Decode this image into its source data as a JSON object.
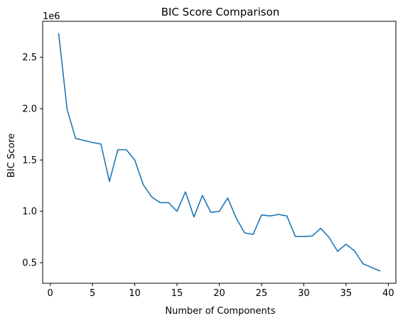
{
  "chart_data": {
    "type": "line",
    "title": "BIC Score Comparison",
    "xlabel": "Number of Components",
    "ylabel": "BIC Score",
    "offset_text": "1e6",
    "xlim": [
      -0.9,
      40.9
    ],
    "ylim": [
      0.3,
      2.85
    ],
    "xticks": [
      0,
      5,
      10,
      15,
      20,
      25,
      30,
      35,
      40
    ],
    "xtick_labels": [
      "0",
      "5",
      "10",
      "15",
      "20",
      "25",
      "30",
      "35",
      "40"
    ],
    "yticks": [
      0.5,
      1.0,
      1.5,
      2.0,
      2.5
    ],
    "ytick_labels": [
      "0.5",
      "1.0",
      "1.5",
      "2.0",
      "2.5"
    ],
    "grid": false,
    "series": [
      {
        "color": "#1f77b4",
        "x": [
          1,
          2,
          3,
          4,
          5,
          6,
          7,
          8,
          9,
          10,
          11,
          12,
          13,
          14,
          15,
          16,
          17,
          18,
          19,
          20,
          21,
          22,
          23,
          24,
          25,
          26,
          27,
          28,
          29,
          30,
          31,
          32,
          33,
          34,
          35,
          36,
          37,
          38,
          39
        ],
        "values": [
          2.73,
          1.99,
          1.71,
          1.69,
          1.67,
          1.655,
          1.29,
          1.6,
          1.6,
          1.5,
          1.26,
          1.14,
          1.085,
          1.085,
          1.0,
          1.19,
          0.945,
          1.155,
          0.99,
          1.0,
          1.13,
          0.935,
          0.79,
          0.775,
          0.965,
          0.955,
          0.97,
          0.955,
          0.755,
          0.755,
          0.76,
          0.835,
          0.745,
          0.61,
          0.68,
          0.615,
          0.49,
          0.455,
          0.42
        ]
      }
    ]
  }
}
